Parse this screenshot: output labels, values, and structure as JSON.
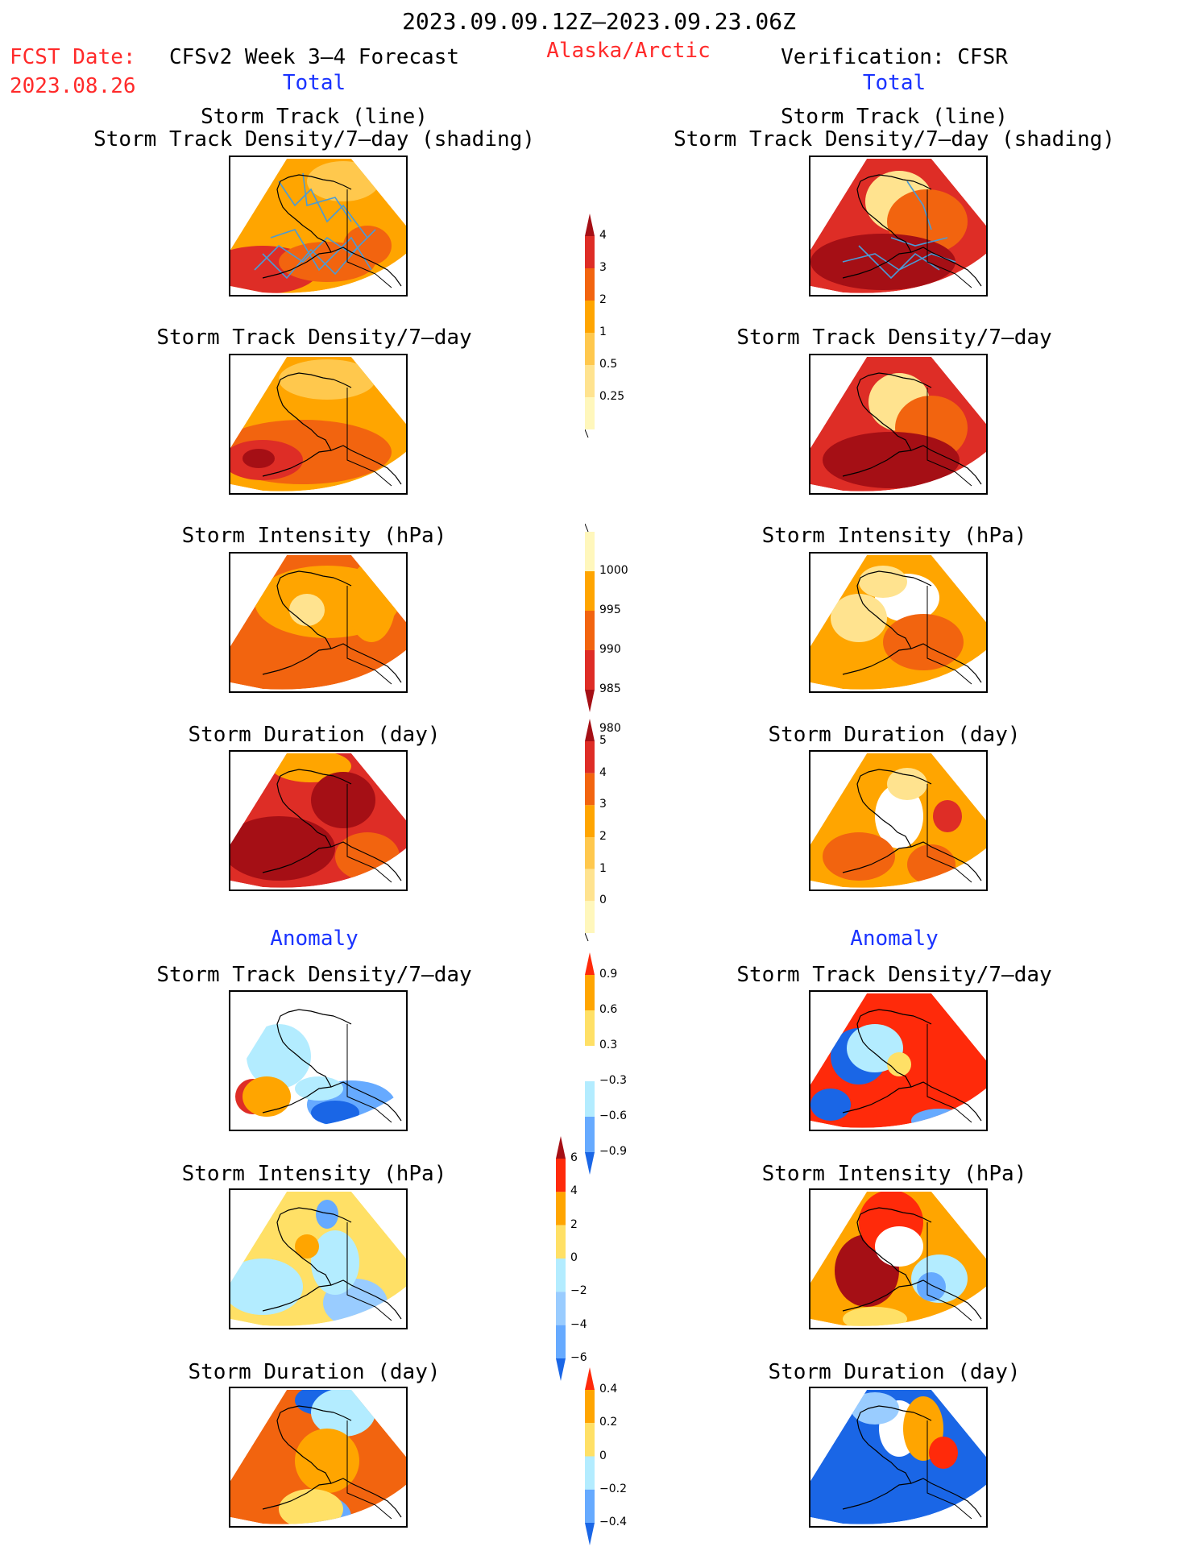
{
  "header": {
    "date_range": "2023.09.09.12Z–2023.09.23.06Z",
    "fcst_label": "FCST Date:",
    "fcst_date": "2023.08.26",
    "model_title": "CFSv2 Week 3–4 Forecast",
    "region": "Alaska/Arctic",
    "verification_title": "Verification: CFSR"
  },
  "left_column": {
    "total_label": "Total",
    "anomaly_label": "Anomaly",
    "panels": [
      {
        "title1": "Storm Track (line)",
        "title2": "Storm Track Density/7–day (shading)"
      },
      {
        "title1": "Storm Track Density/7–day"
      },
      {
        "title1": "Storm Intensity (hPa)"
      },
      {
        "title1": "Storm Duration (day)"
      },
      {
        "title1": "Storm Track Density/7–day"
      },
      {
        "title1": "Storm Intensity (hPa)"
      },
      {
        "title1": "Storm Duration (day)"
      }
    ]
  },
  "right_column": {
    "total_label": "Total",
    "anomaly_label": "Anomaly",
    "panels": [
      {
        "title1": "Storm Track (line)",
        "title2": "Storm Track Density/7–day (shading)"
      },
      {
        "title1": "Storm Track Density/7–day"
      },
      {
        "title1": "Storm Intensity (hPa)"
      },
      {
        "title1": "Storm Duration (day)"
      },
      {
        "title1": "Storm Track Density/7–day"
      },
      {
        "title1": "Storm Intensity (hPa)"
      },
      {
        "title1": "Storm Duration (day)"
      }
    ]
  },
  "colorbars": [
    {
      "labels": [
        "4",
        "3",
        "2",
        "1",
        "0.5",
        "0.25"
      ],
      "colors": [
        "#a50f15",
        "#de2d26",
        "#f2640f",
        "#ffa500",
        "#ffc84d",
        "#ffe38f",
        "#fff7bc"
      ],
      "top_arrow": true,
      "bottom_arrow": false
    },
    {
      "labels": [
        "1000",
        "995",
        "990",
        "985",
        "980"
      ],
      "colors": [
        "#fff7bc",
        "#ffa500",
        "#f2640f",
        "#de2d26",
        "#a50f15"
      ],
      "top_arrow": false,
      "bottom_arrow": true
    },
    {
      "labels": [
        "5",
        "4",
        "3",
        "2",
        "1",
        "0"
      ],
      "colors": [
        "#a50f15",
        "#de2d26",
        "#f2640f",
        "#ffa500",
        "#ffc84d",
        "#ffe38f",
        "#fff7bc"
      ],
      "top_arrow": true,
      "bottom_arrow": false
    },
    {
      "labels": [
        "0.9",
        "0.6",
        "0.3",
        "−0.3",
        "−0.6",
        "−0.9"
      ],
      "colors": [
        "#ff2a0a",
        "#ffa500",
        "#ffe066",
        "#ffffff",
        "#b3ecff",
        "#66aaff",
        "#1a66e6"
      ],
      "top_arrow": true,
      "bottom_arrow": true
    },
    {
      "labels": [
        "6",
        "4",
        "2",
        "0",
        "−2",
        "−4",
        "−6"
      ],
      "colors": [
        "#a50f15",
        "#ff2a0a",
        "#ffa500",
        "#ffe066",
        "#b3ecff",
        "#99ccff",
        "#66aaff",
        "#1a66e6"
      ],
      "top_arrow": true,
      "bottom_arrow": true
    },
    {
      "labels": [
        "0.4",
        "0.2",
        "0",
        "−0.2",
        "−0.4"
      ],
      "colors": [
        "#ff2a0a",
        "#ffa500",
        "#ffe066",
        "#b3ecff",
        "#66aaff",
        "#1a66e6"
      ],
      "top_arrow": true,
      "bottom_arrow": true
    }
  ],
  "map_fills": {
    "left": [
      {
        "base": "#ffa500",
        "blobs": [
          [
            "#ffc84d",
            140,
            30,
            45,
            25
          ],
          [
            "#de2d26",
            40,
            140,
            70,
            30
          ],
          [
            "#f2640f",
            120,
            130,
            60,
            25
          ],
          [
            "#f2640f",
            170,
            110,
            30,
            25
          ]
        ],
        "tracks": true
      },
      {
        "base": "#ffa500",
        "blobs": [
          [
            "#ffc84d",
            120,
            30,
            60,
            25
          ],
          [
            "#f2640f",
            90,
            120,
            110,
            40
          ],
          [
            "#de2d26",
            40,
            130,
            50,
            25
          ],
          [
            "#a50f15",
            35,
            128,
            20,
            12
          ]
        ],
        "tracks": false
      },
      {
        "base": "#f2640f",
        "blobs": [
          [
            "#ffa500",
            120,
            60,
            90,
            45
          ],
          [
            "#ffe38f",
            95,
            70,
            22,
            20
          ],
          [
            "#ffa500",
            175,
            60,
            30,
            50
          ]
        ],
        "tracks": false
      },
      {
        "base": "#de2d26",
        "blobs": [
          [
            "#ffa500",
            100,
            18,
            50,
            20
          ],
          [
            "#a50f15",
            60,
            120,
            70,
            40
          ],
          [
            "#a50f15",
            140,
            60,
            40,
            35
          ],
          [
            "#f2640f",
            170,
            130,
            40,
            30
          ]
        ],
        "tracks": false
      },
      {
        "base": "#ffffff",
        "blobs": [
          [
            "#b3ecff",
            60,
            80,
            40,
            40
          ],
          [
            "#de2d26",
            28,
            130,
            22,
            22
          ],
          [
            "#ffa500",
            45,
            130,
            30,
            25
          ],
          [
            "#66aaff",
            150,
            140,
            55,
            30
          ],
          [
            "#1a66e6",
            130,
            150,
            30,
            15
          ],
          [
            "#b3ecff",
            110,
            120,
            30,
            15
          ]
        ],
        "tracks": false
      },
      {
        "base": "#ffe066",
        "blobs": [
          [
            "#b3ecff",
            40,
            120,
            50,
            35
          ],
          [
            "#66aaff",
            120,
            30,
            14,
            18
          ],
          [
            "#99ccff",
            155,
            140,
            40,
            30
          ],
          [
            "#b3ecff",
            130,
            90,
            30,
            40
          ],
          [
            "#ffa500",
            95,
            70,
            15,
            15
          ]
        ],
        "tracks": false
      },
      {
        "base": "#f2640f",
        "blobs": [
          [
            "#1a66e6",
            110,
            15,
            30,
            18
          ],
          [
            "#b3ecff",
            140,
            30,
            40,
            30
          ],
          [
            "#ffa500",
            120,
            90,
            40,
            40
          ],
          [
            "#66aaff",
            120,
            160,
            30,
            25
          ],
          [
            "#ffe066",
            100,
            150,
            40,
            25
          ]
        ],
        "tracks": false
      }
    ],
    "right": [
      {
        "base": "#de2d26",
        "blobs": [
          [
            "#ffffff",
            110,
            50,
            30,
            30
          ],
          [
            "#ffe38f",
            110,
            55,
            42,
            38
          ],
          [
            "#f2640f",
            145,
            80,
            50,
            40
          ],
          [
            "#a50f15",
            90,
            130,
            90,
            35
          ]
        ],
        "tracks": true
      },
      {
        "base": "#de2d26",
        "blobs": [
          [
            "#ffffff",
            110,
            55,
            25,
            28
          ],
          [
            "#ffe38f",
            110,
            58,
            38,
            36
          ],
          [
            "#f2640f",
            150,
            90,
            45,
            40
          ],
          [
            "#a50f15",
            100,
            130,
            85,
            35
          ]
        ],
        "tracks": false
      },
      {
        "base": "#ffa500",
        "blobs": [
          [
            "#ffffff",
            120,
            55,
            40,
            30
          ],
          [
            "#ffe38f",
            60,
            80,
            35,
            30
          ],
          [
            "#f2640f",
            140,
            110,
            50,
            35
          ],
          [
            "#ffe38f",
            90,
            35,
            30,
            20
          ]
        ],
        "tracks": false
      },
      {
        "base": "#ffa500",
        "blobs": [
          [
            "#ffffff",
            110,
            80,
            30,
            40
          ],
          [
            "#f2640f",
            60,
            130,
            45,
            30
          ],
          [
            "#de2d26",
            170,
            80,
            18,
            20
          ],
          [
            "#ffe38f",
            120,
            40,
            25,
            20
          ],
          [
            "#f2640f",
            150,
            140,
            30,
            25
          ]
        ],
        "tracks": false
      },
      {
        "base": "#ff2a0a",
        "blobs": [
          [
            "#1a66e6",
            60,
            80,
            35,
            35
          ],
          [
            "#b3ecff",
            80,
            70,
            35,
            30
          ],
          [
            "#ffe066",
            110,
            90,
            15,
            15
          ],
          [
            "#1a66e6",
            25,
            140,
            25,
            20
          ],
          [
            "#66aaff",
            160,
            160,
            35,
            15
          ]
        ],
        "tracks": false
      },
      {
        "base": "#ffa500",
        "blobs": [
          [
            "#a50f15",
            70,
            100,
            40,
            45
          ],
          [
            "#ff2a0a",
            100,
            40,
            40,
            40
          ],
          [
            "#ffffff",
            110,
            70,
            30,
            25
          ],
          [
            "#b3ecff",
            160,
            110,
            35,
            30
          ],
          [
            "#66aaff",
            150,
            120,
            18,
            18
          ],
          [
            "#ffe066",
            80,
            160,
            40,
            15
          ]
        ],
        "tracks": false
      },
      {
        "base": "#1a66e6",
        "blobs": [
          [
            "#ffffff",
            110,
            50,
            25,
            35
          ],
          [
            "#ffa500",
            140,
            50,
            25,
            40
          ],
          [
            "#ff2a0a",
            165,
            80,
            18,
            20
          ],
          [
            "#99ccff",
            80,
            25,
            30,
            20
          ]
        ],
        "tracks": false
      }
    ]
  }
}
